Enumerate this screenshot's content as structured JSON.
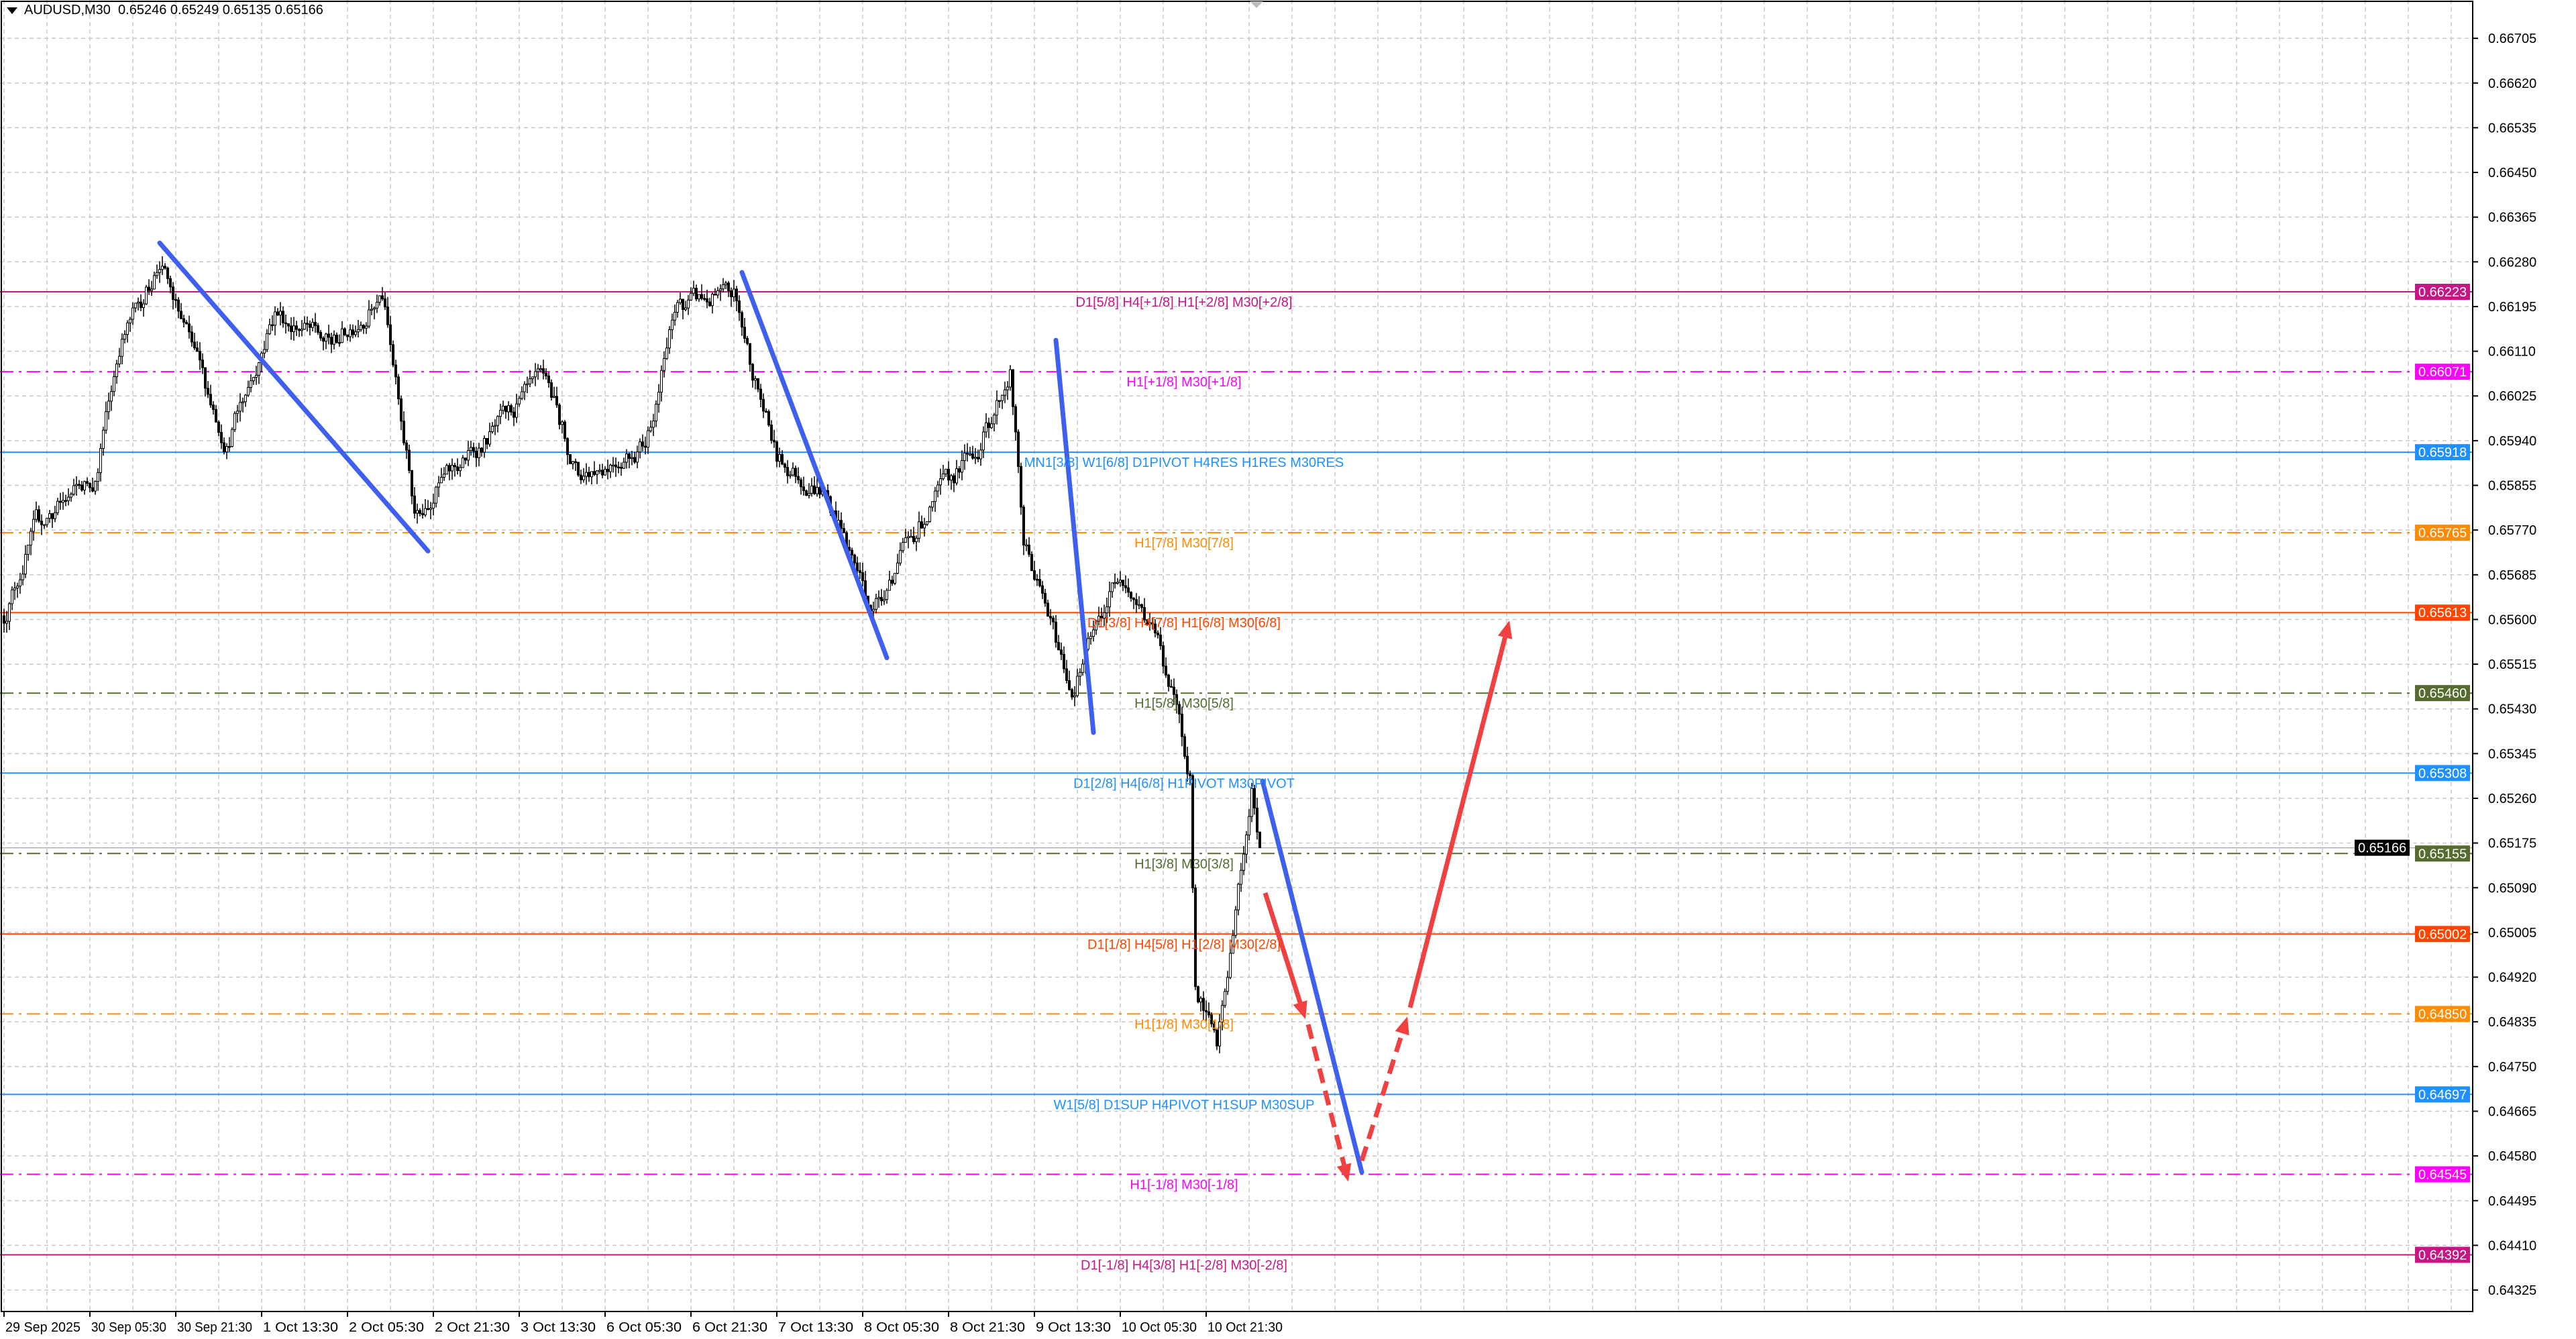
{
  "header": {
    "symbol": "AUDUSD,M30",
    "ohlc": "0.65246 0.65249 0.65135 0.65166"
  },
  "chart_data": {
    "type": "candlestick",
    "title": "AUDUSD,M30",
    "ylim": [
      0.6424,
      0.6678
    ],
    "grid": true,
    "y_ticks": [
      "0.66705",
      "0.66620",
      "0.66535",
      "0.66450",
      "0.66365",
      "0.66280",
      "0.66195",
      "0.66110",
      "0.66025",
      "0.65940",
      "0.65855",
      "0.65770",
      "0.65685",
      "0.65600",
      "0.65515",
      "0.65430",
      "0.65345",
      "0.65260",
      "0.65175",
      "0.65090",
      "0.65005",
      "0.64920",
      "0.64835",
      "0.64750",
      "0.64665",
      "0.64580",
      "0.64495",
      "0.64410",
      "0.64325"
    ],
    "x_ticks": [
      "29 Sep 2025",
      "30 Sep 05:30",
      "30 Sep 21:30",
      "1 Oct 13:30",
      "2 Oct 05:30",
      "2 Oct 21:30",
      "3 Oct 13:30",
      "6 Oct 05:30",
      "6 Oct 21:30",
      "7 Oct 13:30",
      "8 Oct 05:30",
      "8 Oct 21:30",
      "9 Oct 13:30",
      "10 Oct 05:30",
      "10 Oct 21:30"
    ],
    "price_path": [
      {
        "bar": 0,
        "price": 0.65607
      },
      {
        "bar": 12,
        "price": 0.65778
      },
      {
        "bar": 34,
        "price": 0.65872
      },
      {
        "bar": 43,
        "price": 0.66122
      },
      {
        "bar": 58,
        "price": 0.66278
      },
      {
        "bar": 83,
        "price": 0.65935
      },
      {
        "bar": 101,
        "price": 0.66185
      },
      {
        "bar": 122,
        "price": 0.66122
      },
      {
        "bar": 141,
        "price": 0.66215
      },
      {
        "bar": 153,
        "price": 0.6581
      },
      {
        "bar": 184,
        "price": 0.65965
      },
      {
        "bar": 202,
        "price": 0.6606
      },
      {
        "bar": 214,
        "price": 0.65872
      },
      {
        "bar": 239,
        "price": 0.65935
      },
      {
        "bar": 251,
        "price": 0.662
      },
      {
        "bar": 272,
        "price": 0.66215
      },
      {
        "bar": 288,
        "price": 0.65903
      },
      {
        "bar": 306,
        "price": 0.6584
      },
      {
        "bar": 324,
        "price": 0.65622
      },
      {
        "bar": 337,
        "price": 0.65747
      },
      {
        "bar": 349,
        "price": 0.6584
      },
      {
        "bar": 364,
        "price": 0.65935
      },
      {
        "bar": 375,
        "price": 0.66075
      },
      {
        "bar": 380,
        "price": 0.65747
      },
      {
        "bar": 398,
        "price": 0.65465
      },
      {
        "bar": 416,
        "price": 0.657
      },
      {
        "bar": 431,
        "price": 0.65544
      },
      {
        "bar": 442,
        "price": 0.6531
      },
      {
        "bar": 444,
        "price": 0.64904
      },
      {
        "bar": 452,
        "price": 0.64779
      },
      {
        "bar": 458,
        "price": 0.65
      },
      {
        "bar": 465,
        "price": 0.65278
      },
      {
        "bar": 468,
        "price": 0.65166
      }
    ],
    "current_price": "0.65166",
    "levels": [
      {
        "price": "0.66223",
        "label": "D1[5/8] H4[+1/8] H1[+2/8] M30[+2/8]",
        "color": "#c71585",
        "style": "solid"
      },
      {
        "price": "0.66071",
        "label": "H1[+1/8] M30[+1/8]",
        "color": "#ff00ff",
        "style": "dashdot"
      },
      {
        "price": "0.65918",
        "label": "MN1[3/8] W1[6/8] D1PIVOT H4RES H1RES M30RES",
        "color": "#1e90ff",
        "style": "solid"
      },
      {
        "price": "0.65765",
        "label": "H1[7/8] M30[7/8]",
        "color": "#ff8c00",
        "style": "dashdot"
      },
      {
        "price": "0.65613",
        "label": "D1[3/8] H4[7/8] H1[6/8] M30[6/8]",
        "color": "#ff4500",
        "style": "solid"
      },
      {
        "price": "0.65460",
        "label": "H1[5/8] M30[5/8]",
        "color": "#556b2f",
        "style": "dashdot"
      },
      {
        "price": "0.65308",
        "label": "D1[2/8] H4[6/8] H1PIVOT M30PIVOT",
        "color": "#1e90ff",
        "style": "solid"
      },
      {
        "price": "0.65155",
        "label": "H1[3/8] M30[3/8]",
        "color": "#556b2f",
        "style": "dashdot"
      },
      {
        "price": "0.65002",
        "label": "D1[1/8] H4[5/8] H1[2/8] M30[2/8]",
        "color": "#ff4500",
        "style": "solid"
      },
      {
        "price": "0.64850",
        "label": "H1[1/8] M30[1/8]",
        "color": "#ff8c00",
        "style": "dashdot"
      },
      {
        "price": "0.64697",
        "label": "W1[5/8] D1SUP H4PIVOT H1SUP M30SUP",
        "color": "#1e90ff",
        "style": "solid"
      },
      {
        "price": "0.64545",
        "label": "H1[-1/8] M30[-1/8]",
        "color": "#ff00ff",
        "style": "dashdot"
      },
      {
        "price": "0.64392",
        "label": "D1[-1/8] H4[3/8] H1[-2/8] M30[-2/8]",
        "color": "#c71585",
        "style": "solid"
      }
    ],
    "trendlines": [
      {
        "color": "#3f5ff0",
        "from": {
          "bar": 58,
          "price": 0.66316
        },
        "to": {
          "bar": 158,
          "price": 0.6573
        }
      },
      {
        "color": "#3f5ff0",
        "from": {
          "bar": 275,
          "price": 0.6626
        },
        "to": {
          "bar": 329,
          "price": 0.65527
        }
      },
      {
        "color": "#3f5ff0",
        "from": {
          "bar": 392,
          "price": 0.66131
        },
        "to": {
          "bar": 406,
          "price": 0.65385
        }
      },
      {
        "color": "#3f5ff0",
        "from": {
          "bar": 469,
          "price": 0.65293
        },
        "to": {
          "bar": 506,
          "price": 0.64549
        }
      }
    ],
    "forecast_arrows": [
      {
        "color": "#f04040",
        "style": "solid",
        "from": {
          "bar": 470,
          "price": 0.6508
        },
        "to": {
          "bar": 485,
          "price": 0.6484
        }
      },
      {
        "color": "#f04040",
        "style": "dashed",
        "from": {
          "bar": 486,
          "price": 0.6483
        },
        "to": {
          "bar": 501,
          "price": 0.64531
        }
      },
      {
        "color": "#f04040",
        "style": "dashed",
        "from": {
          "bar": 506,
          "price": 0.64571
        },
        "to": {
          "bar": 523,
          "price": 0.64845
        }
      },
      {
        "color": "#f04040",
        "style": "solid",
        "from": {
          "bar": 524,
          "price": 0.64862
        },
        "to": {
          "bar": 561,
          "price": 0.65598
        }
      }
    ]
  }
}
